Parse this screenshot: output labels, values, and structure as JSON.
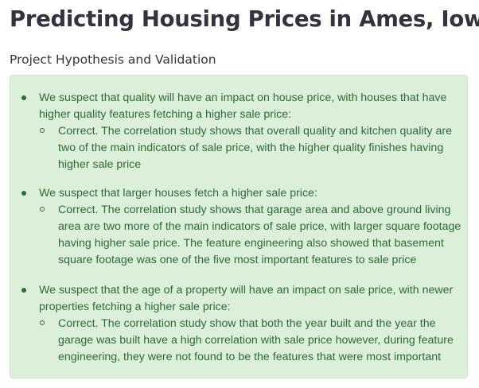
{
  "page": {
    "title": "Predicting Housing Prices in Ames, Iowa",
    "section_heading": "Project Hypothesis and Validation"
  },
  "callout": {
    "color": "#dcefd8",
    "text_color": "#2f6a39",
    "items": [
      {
        "text": "We suspect that quality will have an impact on house price, with houses that have higher quality features fetching a higher sale price:",
        "sub": "Correct. The correlation study shows that overall quality and kitchen quality are two of the main indicators of sale price, with the higher quality finishes having higher sale price"
      },
      {
        "text": "We suspect that larger houses fetch a higher sale price:",
        "sub": "Correct. The correlation study shows that garage area and above ground living area are two more of the main indicators of sale price, with larger square footage having higher sale price. The feature engineering also showed that basement square footage was one of the five most important features to sale price"
      },
      {
        "text": "We suspect that the age of a property will have an impact on sale price, with newer properties fetching a higher sale price:",
        "sub": "Correct. The correlation study show that both the year built and the year the garage was built have a high correlation with sale price however, during feature engineering, they were not found to be the features that were most important"
      }
    ]
  }
}
